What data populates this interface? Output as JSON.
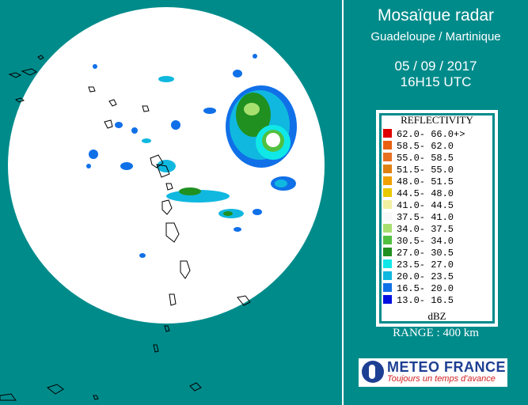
{
  "header": {
    "title": "Mosaïque radar",
    "subtitle": "Guadeloupe / Martinique",
    "date": "05 / 09 / 2017",
    "time": "16H15 UTC"
  },
  "legend": {
    "title": "REFLECTIVITY",
    "unit": "dBZ",
    "items": [
      {
        "range": "62.0- 66.0+>",
        "color": "#e00000"
      },
      {
        "range": "58.5- 62.0",
        "color": "#e86010"
      },
      {
        "range": "55.0- 58.5",
        "color": "#e87020"
      },
      {
        "range": "51.5- 55.0",
        "color": "#e08010"
      },
      {
        "range": "48.0- 51.5",
        "color": "#f0a000"
      },
      {
        "range": "44.5- 48.0",
        "color": "#e8c800"
      },
      {
        "range": "41.0- 44.5",
        "color": "#f0f0a0"
      },
      {
        "range": "37.5- 41.0",
        "color": "#f8f8f8"
      },
      {
        "range": "34.0- 37.5",
        "color": "#a8e070"
      },
      {
        "range": "30.5- 34.0",
        "color": "#50c040"
      },
      {
        "range": "27.0- 30.5",
        "color": "#209020"
      },
      {
        "range": "23.5- 27.0",
        "color": "#10e8e8"
      },
      {
        "range": "20.0- 23.5",
        "color": "#10b8e0"
      },
      {
        "range": "16.5- 20.0",
        "color": "#1070e8"
      },
      {
        "range": "13.0- 16.5",
        "color": "#0010e0"
      }
    ]
  },
  "range_label": "RANGE : 400 km",
  "logo": {
    "name": "METEO FRANCE",
    "slogan": "Toujours un temps d'avance"
  },
  "colors": {
    "background": "#008b8b",
    "radar_disc": "#ffffff",
    "coastline": "#000000"
  }
}
